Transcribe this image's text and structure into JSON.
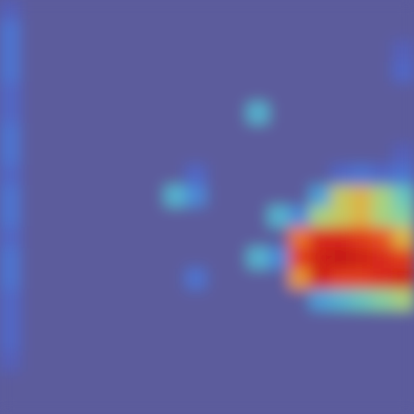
{
  "chart_data": {
    "type": "heatmap",
    "tick_labels": false,
    "cells": [
      [
        0.1,
        0,
        0,
        0,
        0,
        0,
        0,
        0,
        0,
        0,
        0,
        0,
        0,
        0,
        0,
        0,
        0,
        0,
        0,
        0
      ],
      [
        0.2,
        0,
        0,
        0,
        0,
        0,
        0,
        0,
        0,
        0,
        0,
        0,
        0,
        0,
        0,
        0,
        0,
        0,
        0,
        0
      ],
      [
        0.2,
        0,
        0,
        0,
        0,
        0,
        0,
        0,
        0,
        0,
        0,
        0,
        0,
        0,
        0,
        0,
        0,
        0,
        0,
        0.1
      ],
      [
        0.2,
        0,
        0,
        0,
        0,
        0,
        0,
        0,
        0,
        0,
        0,
        0,
        0,
        0,
        0,
        0,
        0,
        0,
        0,
        0.15
      ],
      [
        0.15,
        0,
        0,
        0,
        0,
        0,
        0,
        0,
        0,
        0,
        0,
        0,
        0,
        0,
        0,
        0,
        0,
        0,
        0,
        0
      ],
      [
        0.15,
        0,
        0,
        0,
        0,
        0,
        0,
        0,
        0,
        0,
        0,
        0,
        0.35,
        0,
        0,
        0,
        0,
        0,
        0,
        0
      ],
      [
        0.2,
        0,
        0,
        0,
        0,
        0,
        0,
        0,
        0,
        0,
        0,
        0,
        0,
        0,
        0,
        0,
        0,
        0,
        0,
        0
      ],
      [
        0.2,
        0,
        0,
        0,
        0,
        0,
        0,
        0,
        0,
        0,
        0,
        0,
        0,
        0,
        0,
        0,
        0,
        0,
        0,
        0.1
      ],
      [
        0.15,
        0,
        0,
        0,
        0,
        0,
        0,
        0,
        0,
        0.15,
        0,
        0,
        0,
        0,
        0,
        0,
        0.15,
        0.2,
        0.15,
        0.2
      ],
      [
        0.2,
        0,
        0,
        0,
        0,
        0,
        0,
        0,
        0.35,
        0.25,
        0,
        0,
        0,
        0,
        0,
        0.3,
        0.55,
        0.6,
        0.5,
        0.4
      ],
      [
        0.2,
        0,
        0,
        0,
        0,
        0,
        0,
        0,
        0,
        0,
        0,
        0,
        0,
        0.35,
        0.25,
        0.5,
        0.55,
        0.6,
        0.5,
        0.45
      ],
      [
        0.15,
        0,
        0,
        0,
        0,
        0,
        0,
        0,
        0,
        0,
        0,
        0,
        0,
        0,
        0.7,
        0.85,
        0.85,
        0.8,
        0.75,
        0.6
      ],
      [
        0.2,
        0,
        0,
        0,
        0,
        0,
        0,
        0,
        0,
        0,
        0,
        0,
        0.35,
        0.25,
        0.8,
        0.9,
        0.95,
        0.9,
        0.85,
        0.8
      ],
      [
        0.2,
        0,
        0,
        0,
        0,
        0,
        0,
        0,
        0,
        0.2,
        0,
        0,
        0,
        0,
        0.65,
        0.9,
        0.8,
        0.8,
        0.85,
        0.9
      ],
      [
        0.15,
        0,
        0,
        0,
        0,
        0,
        0,
        0,
        0,
        0,
        0,
        0,
        0,
        0,
        0,
        0.3,
        0.35,
        0.4,
        0.45,
        0.5
      ],
      [
        0.15,
        0,
        0,
        0,
        0,
        0,
        0,
        0,
        0,
        0,
        0,
        0,
        0,
        0,
        0,
        0,
        0,
        0,
        0,
        0
      ],
      [
        0.15,
        0,
        0,
        0,
        0,
        0,
        0,
        0,
        0,
        0,
        0,
        0,
        0,
        0,
        0,
        0,
        0,
        0,
        0,
        0
      ],
      [
        0.1,
        0,
        0,
        0,
        0,
        0,
        0,
        0,
        0,
        0,
        0,
        0,
        0,
        0,
        0,
        0,
        0,
        0,
        0,
        0
      ],
      [
        0,
        0,
        0,
        0,
        0,
        0,
        0,
        0,
        0,
        0,
        0,
        0,
        0,
        0,
        0,
        0,
        0,
        0,
        0,
        0
      ],
      [
        0,
        0,
        0,
        0,
        0,
        0,
        0,
        0,
        0,
        0,
        0,
        0,
        0,
        0,
        0,
        0,
        0,
        0,
        0,
        0
      ]
    ]
  }
}
